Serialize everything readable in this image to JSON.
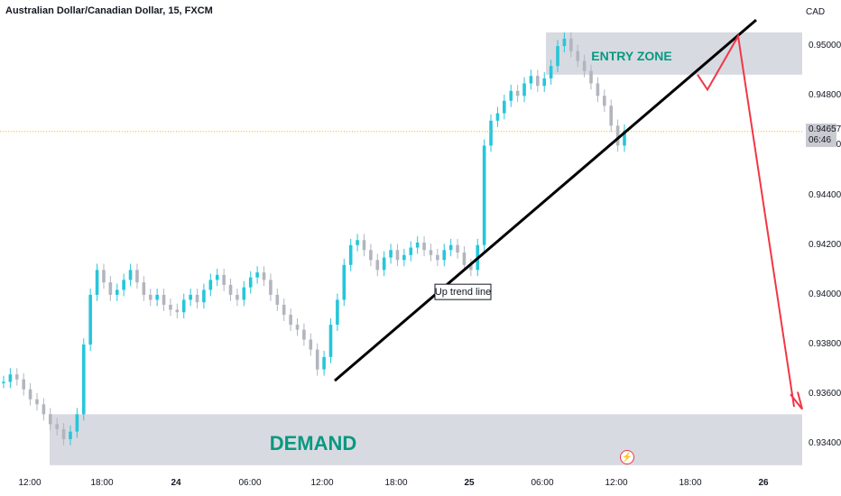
{
  "header": {
    "title": "Australian Dollar/Canadian Dollar, 15, FXCM",
    "currency": "CAD"
  },
  "price_tag": {
    "price": "0.94657",
    "countdown": "06:46"
  },
  "zones": {
    "entry_label": "ENTRY ZONE",
    "demand_label": "DEMAND"
  },
  "annotations": {
    "trend_label": "Up trend line"
  },
  "colors": {
    "bull": "#26c6da",
    "bear": "#b2b5be",
    "bull_strong": "#089981",
    "bear_strong": "#f23645",
    "zone": "#d1d4dc",
    "zone_text": "#089981",
    "projection": "#f23645",
    "trendline": "#000000",
    "current_price_line": "#e6c200"
  },
  "chart_data": {
    "type": "line",
    "title": "Australian Dollar/Canadian Dollar, 15, FXCM",
    "ylabel": "CAD",
    "ylim": [
      0.933,
      0.9512
    ],
    "yticks": [
      0.95,
      0.948,
      0.946,
      0.944,
      0.942,
      0.94,
      0.938,
      0.936,
      0.934
    ],
    "ytick_labels": [
      "0.95000",
      "0.94800",
      "0.94600",
      "0.94400",
      "0.94200",
      "0.94000",
      "0.93800",
      "0.93600",
      "0.93400"
    ],
    "xtick_labels": [
      "12:00",
      "18:00",
      "24",
      "06:00",
      "12:00",
      "18:00",
      "25",
      "06:00",
      "12:00",
      "18:00",
      "26"
    ],
    "current_price": 0.94657,
    "series": [
      {
        "type": "line",
        "values": [
          0.9365,
          0.9368,
          0.9366,
          0.9362,
          0.9358,
          0.9356,
          0.9352,
          0.9348,
          0.9346,
          0.9342,
          0.9345,
          0.9352,
          0.938,
          0.94,
          0.941,
          0.9405,
          0.94,
          0.9402,
          0.9406,
          0.941,
          0.9405,
          0.94,
          0.9398,
          0.94,
          0.9396,
          0.9394,
          0.9393,
          0.9398,
          0.94,
          0.9397,
          0.9402,
          0.9406,
          0.9408,
          0.9404,
          0.94,
          0.9398,
          0.9403,
          0.9407,
          0.9409,
          0.9406,
          0.94,
          0.9396,
          0.9392,
          0.9388,
          0.9386,
          0.9382,
          0.9378,
          0.937,
          0.9375,
          0.9388,
          0.9398,
          0.9412,
          0.942,
          0.9422,
          0.9418,
          0.9414,
          0.941,
          0.9415,
          0.9418,
          0.9414,
          0.9416,
          0.9419,
          0.9421,
          0.9418,
          0.9416,
          0.9414,
          0.9418,
          0.942,
          0.9417,
          0.9412,
          0.941,
          0.942,
          0.946,
          0.947,
          0.9473,
          0.9478,
          0.9482,
          0.948,
          0.9485,
          0.9488,
          0.9484,
          0.9487,
          0.9492,
          0.95,
          0.9503,
          0.9498,
          0.9494,
          0.949,
          0.9485,
          0.948,
          0.9476,
          0.9468,
          0.946,
          0.9466
        ]
      }
    ]
  }
}
